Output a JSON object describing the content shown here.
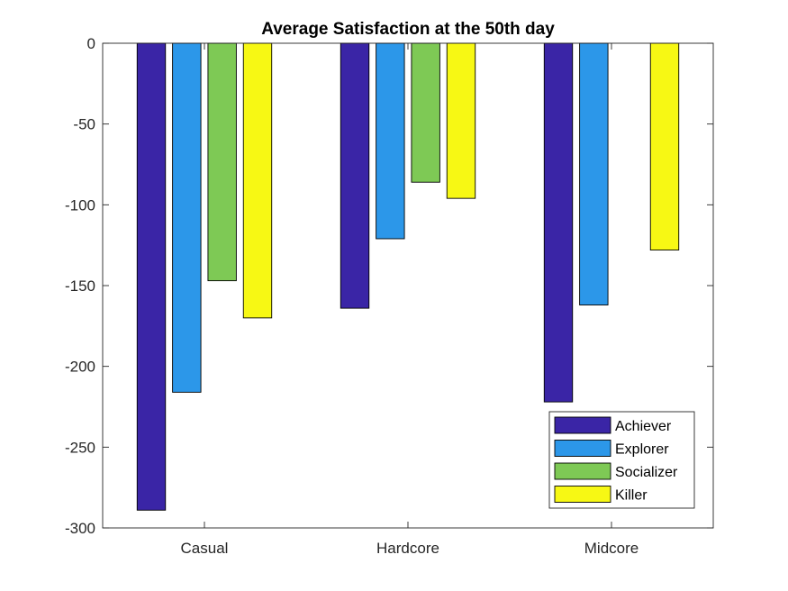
{
  "chart_data": {
    "type": "bar",
    "title": "Average Satisfaction at the 50th day",
    "xlabel": "",
    "ylabel": "",
    "categories": [
      "Casual",
      "Hardcore",
      "Midcore"
    ],
    "ylim": [
      -300,
      0
    ],
    "yticks": [
      0,
      -50,
      -100,
      -150,
      -200,
      -250,
      -300
    ],
    "ytick_labels": [
      "0",
      "-50",
      "-100",
      "-150",
      "-200",
      "-250",
      "-300"
    ],
    "grid": false,
    "legend_position": "bottom-right",
    "series": [
      {
        "name": "Achiever",
        "color": "#3a25a6",
        "values": [
          -289,
          -164,
          -222
        ]
      },
      {
        "name": "Explorer",
        "color": "#2c97e9",
        "values": [
          -216,
          -121,
          -162
        ]
      },
      {
        "name": "Socializer",
        "color": "#7ec955",
        "values": [
          -147,
          -86,
          0
        ]
      },
      {
        "name": "Killer",
        "color": "#f7f814",
        "values": [
          -170,
          -96,
          -128
        ]
      }
    ]
  }
}
